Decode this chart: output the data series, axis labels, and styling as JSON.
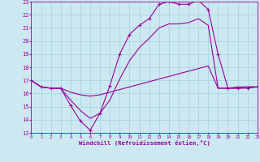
{
  "xlabel": "Windchill (Refroidissement éolien,°C)",
  "xlim": [
    0,
    23
  ],
  "ylim": [
    13,
    23
  ],
  "yticks": [
    13,
    14,
    15,
    16,
    17,
    18,
    19,
    20,
    21,
    22,
    23
  ],
  "xticks": [
    0,
    1,
    2,
    3,
    4,
    5,
    6,
    7,
    8,
    9,
    10,
    11,
    12,
    13,
    14,
    15,
    16,
    17,
    18,
    19,
    20,
    21,
    22,
    23
  ],
  "background_color": "#cce8f0",
  "grid_color": "#99ccdd",
  "line_color": "#990099",
  "line1_x": [
    0,
    1,
    2,
    3,
    4,
    5,
    6,
    7,
    8,
    9,
    10,
    11,
    12,
    13,
    14,
    15,
    16,
    17,
    18,
    19,
    20,
    21,
    22,
    23
  ],
  "line1_y": [
    17.0,
    16.5,
    16.4,
    16.4,
    15.1,
    13.9,
    13.2,
    14.5,
    16.6,
    19.0,
    20.5,
    21.2,
    21.7,
    22.8,
    23.0,
    22.8,
    22.8,
    23.1,
    22.4,
    19.0,
    16.4,
    16.4,
    16.4,
    16.5
  ],
  "line2_x": [
    0,
    1,
    2,
    3,
    4,
    5,
    6,
    7,
    8,
    9,
    10,
    11,
    12,
    13,
    14,
    15,
    16,
    17,
    18,
    19,
    20,
    21,
    22,
    23
  ],
  "line2_y": [
    17.0,
    16.5,
    16.4,
    16.4,
    16.1,
    15.9,
    15.8,
    15.9,
    16.1,
    16.3,
    16.5,
    16.7,
    16.9,
    17.1,
    17.3,
    17.5,
    17.7,
    17.9,
    18.1,
    16.4,
    16.4,
    16.5,
    16.5,
    16.5
  ],
  "line3_x": [
    0,
    1,
    2,
    3,
    4,
    5,
    6,
    7,
    8,
    9,
    10,
    11,
    12,
    13,
    14,
    15,
    16,
    17,
    18,
    19,
    20,
    21,
    22,
    23
  ],
  "line3_y": [
    17.0,
    16.5,
    16.4,
    16.4,
    15.5,
    14.7,
    14.1,
    14.5,
    15.5,
    17.1,
    18.5,
    19.5,
    20.2,
    21.0,
    21.3,
    21.3,
    21.4,
    21.7,
    21.2,
    16.4,
    16.4,
    16.4,
    16.5,
    16.5
  ],
  "marker": "+",
  "markersize": 3.5
}
